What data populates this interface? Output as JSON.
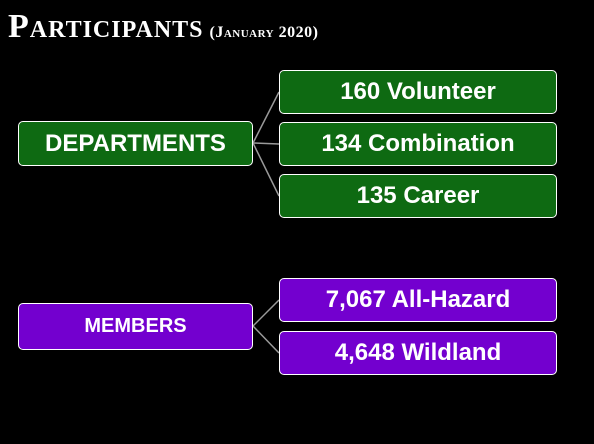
{
  "header": {
    "title": "Participants",
    "subtitle": "(January 2020)"
  },
  "groups": [
    {
      "label": "DEPARTMENTS",
      "children": [
        "160 Volunteer",
        "134 Combination",
        "135 Career"
      ]
    },
    {
      "label": "MEMBERS",
      "children": [
        "7,067 All-Hazard",
        "4,648 Wildland"
      ]
    }
  ]
}
